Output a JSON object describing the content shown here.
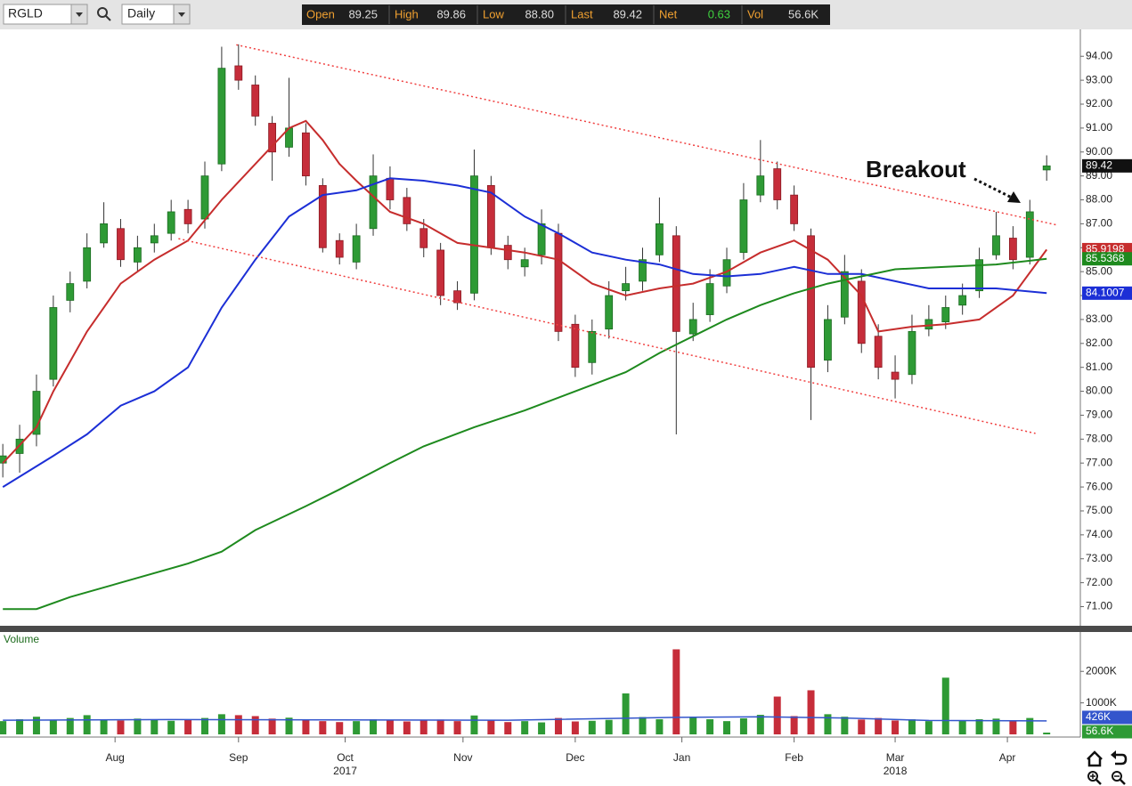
{
  "toolbar": {
    "symbol": "RGLD",
    "interval": "Daily",
    "quote": [
      {
        "label": "Open",
        "value": "89.25"
      },
      {
        "label": "High",
        "value": "89.86"
      },
      {
        "label": "Low",
        "value": "88.80"
      },
      {
        "label": "Last",
        "value": "89.42"
      },
      {
        "label": "Net",
        "value": "0.63",
        "color": "#3fd23f"
      },
      {
        "label": "Vol",
        "value": "56.6K"
      }
    ]
  },
  "chart_data": [
    {
      "type": "candlestick",
      "annotation": "Breakout",
      "colors": {
        "up": "#2e9a35",
        "down": "#c62d3a",
        "last": "#111111"
      },
      "xlim": [
        -0.5,
        192
      ],
      "ylim": [
        70.2,
        95.05
      ],
      "yticks": [
        {
          "value": 94,
          "label": "94.00"
        },
        {
          "value": 93,
          "label": "93.00"
        },
        {
          "value": 92,
          "label": "92.00"
        },
        {
          "value": 91,
          "label": "91.00"
        },
        {
          "value": 90,
          "label": "90.00"
        },
        {
          "value": 89,
          "label": "89.00"
        },
        {
          "value": 88,
          "label": "88.00"
        },
        {
          "value": 87,
          "label": "87.00"
        },
        {
          "value": 86,
          "label": "86.00"
        },
        {
          "value": 85,
          "label": "85.00"
        },
        {
          "value": 84,
          "label": "84.00"
        },
        {
          "value": 83,
          "label": "83.00"
        },
        {
          "value": 82,
          "label": "82.00"
        },
        {
          "value": 81,
          "label": "81.00"
        },
        {
          "value": 80,
          "label": "80.00"
        },
        {
          "value": 79,
          "label": "79.00"
        },
        {
          "value": 78,
          "label": "78.00"
        },
        {
          "value": 77,
          "label": "77.00"
        },
        {
          "value": 76,
          "label": "76.00"
        },
        {
          "value": 75,
          "label": "75.00"
        },
        {
          "value": 74,
          "label": "74.00"
        },
        {
          "value": 73,
          "label": "73.00"
        },
        {
          "value": 72,
          "label": "72.00"
        },
        {
          "value": 71,
          "label": "71.00"
        }
      ],
      "xticks": [
        {
          "value": 20,
          "label": "Aug"
        },
        {
          "value": 42,
          "label": "Sep"
        },
        {
          "value": 61,
          "label": "Oct"
        },
        {
          "value": 82,
          "label": "Nov"
        },
        {
          "value": 102,
          "label": "Dec"
        },
        {
          "value": 121,
          "label": "Jan"
        },
        {
          "value": 141,
          "label": "Feb"
        },
        {
          "value": 159,
          "label": "Mar"
        },
        {
          "value": 179,
          "label": "Apr"
        }
      ],
      "year_labels": [
        {
          "value": 61,
          "label": "2017"
        },
        {
          "value": 159,
          "label": "2018"
        }
      ],
      "x": [
        0,
        3,
        6,
        9,
        12,
        15,
        18,
        21,
        24,
        27,
        30,
        33,
        36,
        39,
        42,
        45,
        48,
        51,
        54,
        57,
        60,
        63,
        66,
        69,
        72,
        75,
        78,
        81,
        84,
        87,
        90,
        93,
        96,
        99,
        102,
        105,
        108,
        111,
        114,
        117,
        120,
        123,
        126,
        129,
        132,
        135,
        138,
        141,
        144,
        147,
        150,
        153,
        156,
        159,
        162,
        165,
        168,
        171,
        174,
        177,
        180,
        183,
        186
      ],
      "open": [
        77.0,
        77.4,
        78.2,
        80.5,
        83.8,
        84.6,
        86.2,
        86.8,
        85.4,
        86.2,
        86.6,
        87.6,
        87.2,
        89.5,
        93.6,
        92.8,
        91.2,
        90.2,
        90.8,
        88.6,
        86.3,
        85.4,
        86.8,
        88.9,
        88.1,
        86.8,
        85.9,
        84.2,
        84.1,
        88.6,
        86.1,
        85.2,
        85.7,
        86.6,
        82.8,
        81.2,
        82.6,
        84.2,
        84.6,
        85.7,
        86.5,
        82.4,
        83.2,
        84.4,
        85.8,
        88.2,
        89.3,
        88.2,
        86.5,
        81.3,
        83.1,
        84.6,
        82.3,
        80.8,
        80.7,
        82.6,
        82.9,
        83.6,
        84.2,
        85.7,
        86.4,
        85.6,
        89.25
      ],
      "high": [
        77.8,
        78.6,
        80.7,
        84,
        85,
        86.6,
        87.9,
        87.2,
        86.5,
        87,
        88,
        88,
        89.6,
        94.4,
        94.5,
        93.2,
        91.5,
        93.1,
        91.2,
        88.9,
        86.6,
        87,
        89.9,
        89.4,
        88.5,
        87.2,
        86.2,
        84.6,
        90.1,
        89,
        86.5,
        86,
        87.6,
        87,
        83.2,
        83,
        84.6,
        85.2,
        86,
        88.1,
        86.9,
        83.7,
        85.1,
        86,
        88.7,
        90.5,
        89.6,
        88.6,
        86.8,
        83.6,
        85.7,
        85.1,
        82.8,
        81.5,
        83.2,
        83.6,
        84,
        84.5,
        86,
        87.5,
        86.9,
        88,
        89.86
      ],
      "low": [
        76.4,
        76.6,
        77.7,
        80.2,
        83.3,
        84.3,
        86,
        85.2,
        85,
        85.8,
        86.3,
        86.6,
        86.8,
        89.2,
        92.6,
        91.1,
        88.8,
        89.8,
        88.6,
        85.8,
        85.3,
        85.1,
        86.5,
        87.6,
        86.7,
        85.6,
        83.6,
        83.4,
        83.8,
        85.7,
        85.1,
        84.8,
        85.3,
        82.1,
        80.6,
        80.7,
        82.2,
        83.8,
        84.2,
        85.4,
        78.2,
        82.1,
        82.9,
        84.1,
        85.5,
        87.9,
        87.6,
        86.7,
        78.8,
        80.8,
        82.8,
        81.6,
        80.5,
        79.7,
        80.3,
        82.3,
        82.6,
        83.2,
        83.9,
        85.5,
        85.1,
        85.3,
        88.8
      ],
      "close": [
        77.3,
        78,
        80,
        83.5,
        84.5,
        86,
        87,
        85.5,
        86,
        86.5,
        87.5,
        87,
        89,
        93.5,
        93,
        91.5,
        90,
        91,
        89,
        86,
        85.6,
        86.5,
        89,
        88,
        87,
        86,
        84,
        83.7,
        89,
        86,
        85.5,
        85.5,
        87,
        82.5,
        81,
        82.5,
        84,
        84.5,
        85.5,
        87,
        82.5,
        83,
        84.5,
        85.5,
        88,
        89,
        88,
        87,
        81,
        83,
        85,
        82,
        81,
        80.5,
        82.5,
        83,
        83.5,
        84,
        85.5,
        86.5,
        85.5,
        87.5,
        89.42
      ],
      "series": [
        {
          "color": "#c62d2d",
          "x": [
            0,
            6,
            9,
            15,
            21,
            27,
            33,
            39,
            45,
            51,
            54,
            57,
            60,
            63,
            69,
            75,
            81,
            87,
            93,
            99,
            105,
            111,
            117,
            123,
            129,
            135,
            141,
            147,
            153,
            156,
            162,
            168,
            174,
            180,
            186
          ],
          "values": [
            77,
            78.5,
            80,
            82.5,
            84.5,
            85.5,
            86.3,
            88,
            89.5,
            91,
            91.3,
            90.5,
            89.5,
            88.8,
            87.5,
            87,
            86.2,
            86,
            85.8,
            85.5,
            84.5,
            84,
            84.3,
            84.5,
            85,
            85.8,
            86.3,
            85.5,
            84,
            82.5,
            82.7,
            82.8,
            83,
            84,
            85.9198
          ]
        },
        {
          "color": "#1c2fd6",
          "x": [
            0,
            9,
            15,
            21,
            27,
            33,
            39,
            45,
            51,
            57,
            63,
            69,
            75,
            81,
            87,
            93,
            99,
            105,
            111,
            117,
            123,
            129,
            135,
            141,
            147,
            153,
            159,
            165,
            171,
            177,
            186
          ],
          "values": [
            76,
            77.3,
            78.2,
            79.4,
            80,
            81,
            83.5,
            85.5,
            87.3,
            88.2,
            88.4,
            88.9,
            88.8,
            88.6,
            88.3,
            87.3,
            86.6,
            85.8,
            85.5,
            85.3,
            84.9,
            84.8,
            84.9,
            85.2,
            84.9,
            84.9,
            84.6,
            84.3,
            84.3,
            84.3,
            84.1007
          ]
        },
        {
          "color": "#1e8a1e",
          "x": [
            0,
            6,
            12,
            21,
            33,
            39,
            45,
            54,
            60,
            69,
            75,
            84,
            93,
            102,
            111,
            117,
            123,
            129,
            135,
            141,
            147,
            153,
            159,
            168,
            177,
            186
          ],
          "values": [
            70.9,
            70.9,
            71.4,
            72,
            72.8,
            73.3,
            74.2,
            75.2,
            75.9,
            77,
            77.7,
            78.5,
            79.2,
            80,
            80.8,
            81.6,
            82.3,
            83,
            83.6,
            84.1,
            84.5,
            84.8,
            85.1,
            85.2,
            85.3,
            85.5368
          ]
        }
      ],
      "trendlines": [
        {
          "color": "#f04040",
          "x": [
            41.6,
            188
          ],
          "values": [
            94.48,
            86.94
          ]
        },
        {
          "color": "#f04040",
          "x": [
            31.3,
            184
          ],
          "values": [
            86.38,
            78.24
          ]
        }
      ]
    },
    {
      "type": "bar",
      "title": "Volume",
      "xlim": [
        -0.5,
        192
      ],
      "ylim": [
        0,
        3250000
      ],
      "yticks": [
        {
          "value": 2000000,
          "label": "2000K"
        },
        {
          "value": 1000000,
          "label": "1000K"
        }
      ],
      "last_color": "#2e9a35",
      "last_label": "56.6K",
      "x": [
        0,
        3,
        6,
        9,
        12,
        15,
        18,
        21,
        24,
        27,
        30,
        33,
        36,
        39,
        42,
        45,
        48,
        51,
        54,
        57,
        60,
        63,
        66,
        69,
        72,
        75,
        78,
        81,
        84,
        87,
        90,
        93,
        96,
        99,
        102,
        105,
        108,
        111,
        114,
        117,
        120,
        123,
        126,
        129,
        132,
        135,
        138,
        141,
        144,
        147,
        150,
        153,
        156,
        159,
        162,
        165,
        168,
        171,
        174,
        177,
        180,
        183,
        186
      ],
      "values": [
        420000,
        480000,
        560000,
        450000,
        520000,
        610000,
        480000,
        440000,
        500000,
        470000,
        430000,
        460000,
        520000,
        640000,
        610000,
        580000,
        500000,
        530000,
        470000,
        420000,
        390000,
        420000,
        480000,
        440000,
        410000,
        450000,
        470000,
        420000,
        600000,
        460000,
        390000,
        420000,
        380000,
        520000,
        410000,
        430000,
        460000,
        1300000,
        550000,
        480000,
        2700000,
        560000,
        480000,
        420000,
        510000,
        620000,
        1200000,
        580000,
        1400000,
        640000,
        560000,
        470000,
        520000,
        440000,
        480000,
        420000,
        1800000,
        430000,
        480000,
        500000,
        450000,
        520000,
        56600
      ],
      "series": [
        {
          "color": "#3355cc",
          "x": [
            0,
            30,
            60,
            90,
            120,
            135,
            150,
            165,
            186
          ],
          "values": [
            450000,
            470000,
            460000,
            450000,
            540000,
            560000,
            520000,
            440000,
            426000
          ],
          "last_label": "426K"
        }
      ]
    }
  ]
}
